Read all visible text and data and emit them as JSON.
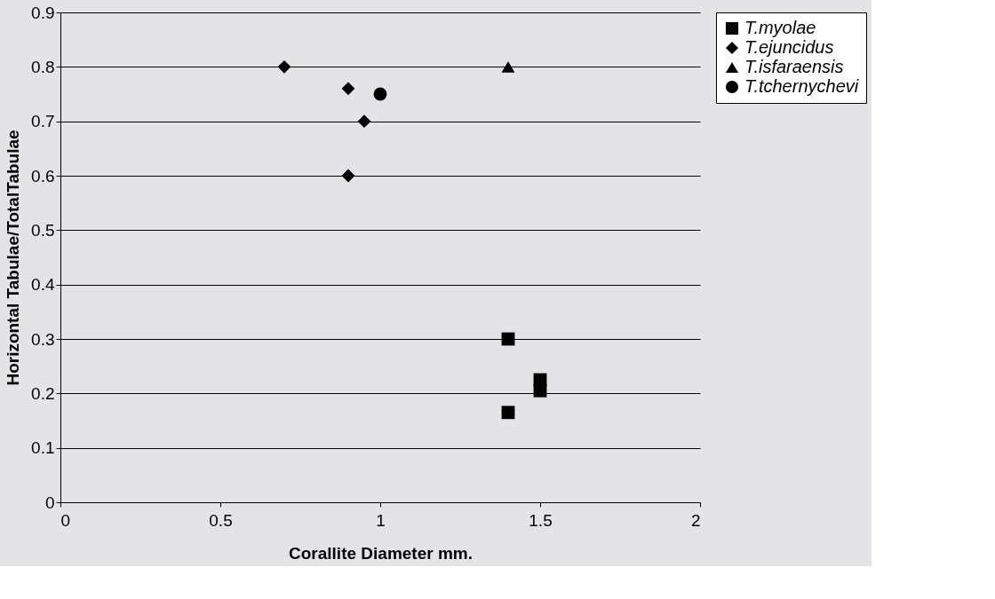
{
  "chart_data": {
    "type": "scatter",
    "xlabel": "Corallite Diameter mm.",
    "ylabel": "Horizontal Tabulae/TotalTabulae",
    "xlim": [
      0,
      2
    ],
    "xticks": [
      0,
      0.5,
      1,
      1.5,
      2
    ],
    "ylim": [
      0,
      0.9
    ],
    "yticks": [
      0,
      0.1,
      0.2,
      0.3,
      0.4,
      0.5,
      0.6,
      0.7,
      0.8,
      0.9
    ],
    "grid": "y",
    "legend": "right",
    "series": [
      {
        "name": "T.myolae",
        "color": "#000000",
        "marker": "square",
        "x": [
          1.4,
          1.5,
          1.5,
          1.4
        ],
        "values": [
          0.3,
          0.225,
          0.205,
          0.165
        ]
      },
      {
        "name": "T.ejuncidus",
        "color": "#000000",
        "marker": "diamond",
        "x": [
          0.7,
          0.9,
          0.95,
          0.9
        ],
        "values": [
          0.8,
          0.76,
          0.7,
          0.6
        ]
      },
      {
        "name": "T.isfaraensis",
        "color": "#000000",
        "marker": "triangle",
        "x": [
          1.4
        ],
        "values": [
          0.8
        ]
      },
      {
        "name": "T.tchernychevi",
        "color": "#000000",
        "marker": "circle",
        "x": [
          1.0
        ],
        "values": [
          0.75
        ]
      }
    ]
  }
}
